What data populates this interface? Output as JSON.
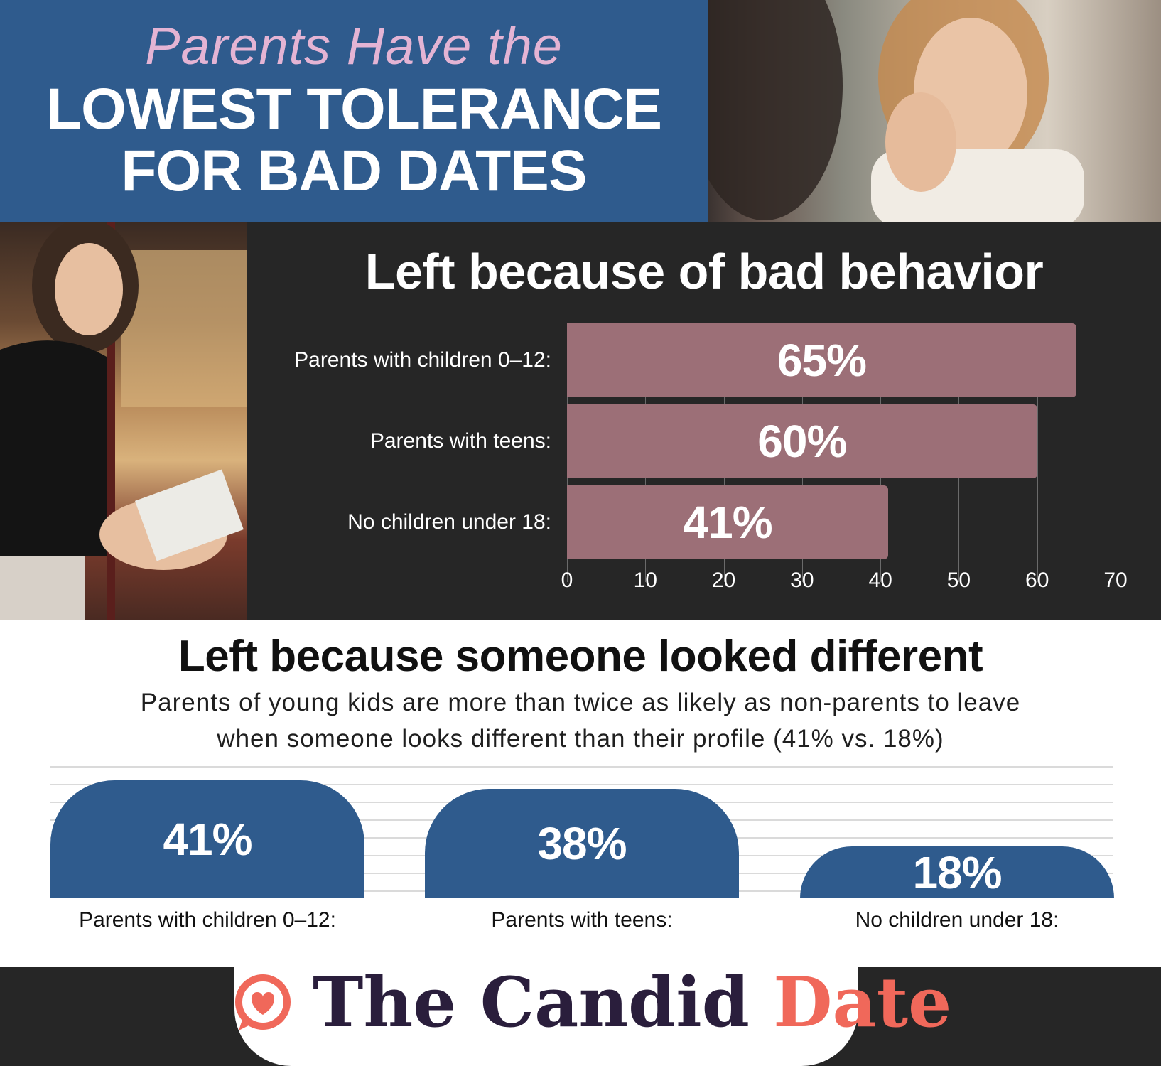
{
  "header": {
    "line1": "Parents Have the",
    "line2": "LOWEST TOLERANCE",
    "line3": "FOR BAD DATES"
  },
  "chart_data": [
    {
      "type": "bar",
      "orientation": "horizontal",
      "title": "Left because of bad behavior",
      "categories": [
        "Parents with children 0–12:",
        "Parents with teens:",
        "No children under 18:"
      ],
      "values": [
        65,
        60,
        41
      ],
      "value_labels": [
        "65%",
        "60%",
        "41%"
      ],
      "xlim": [
        0,
        70
      ],
      "xticks": [
        0,
        10,
        20,
        30,
        40,
        50,
        60,
        70
      ],
      "grid": true,
      "bar_color": "#9c6f77"
    },
    {
      "type": "bar",
      "orientation": "vertical",
      "title": "Left because someone looked different",
      "subtitle_line1": "Parents of young kids are more than twice as likely as non-parents to leave",
      "subtitle_line2": "when someone looks different than their profile (41% vs. 18%)",
      "categories": [
        "Parents with children 0–12:",
        "Parents with teens:",
        "No children under 18:"
      ],
      "values": [
        41,
        38,
        18
      ],
      "value_labels": [
        "41%",
        "38%",
        "18%"
      ],
      "grid": true,
      "bar_color": "#2f5b8d"
    }
  ],
  "footer": {
    "brand_main": "The Candid",
    "brand_accent": "Date",
    "accent_color": "#f0685a",
    "icon": "heart-chat-icon"
  }
}
